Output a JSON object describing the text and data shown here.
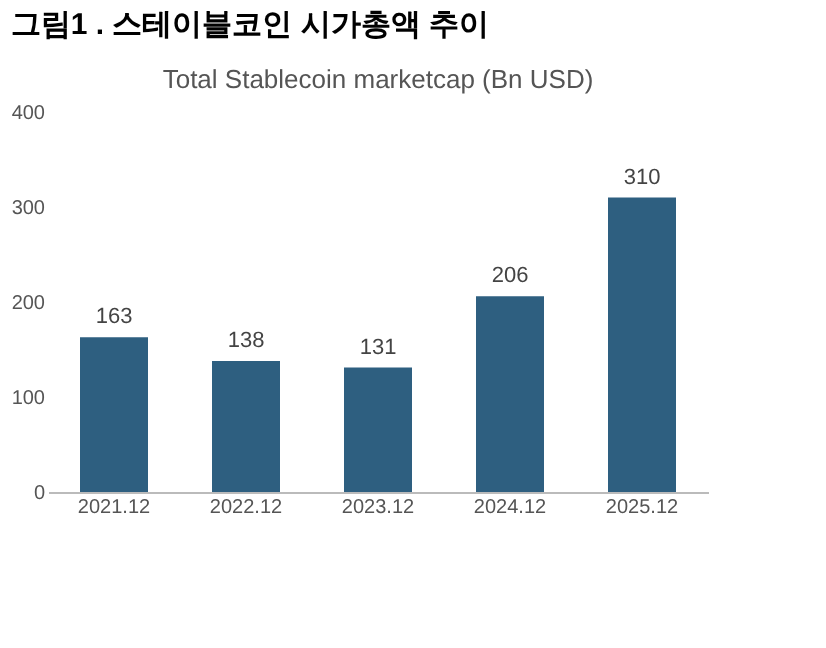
{
  "chart_data": {
    "type": "bar",
    "title": "그림1 . 스테이블코인 시가총액 추이",
    "subtitle": "Total Stablecoin marketcap (Bn USD)",
    "categories": [
      "2021.12",
      "2022.12",
      "2023.12",
      "2024.12",
      "2025.12"
    ],
    "values": [
      163,
      138,
      131,
      206,
      310
    ],
    "color": "#2e5f80",
    "ylim": [
      0,
      400
    ],
    "yticks": [
      0,
      100,
      200,
      300,
      400
    ],
    "grid": false,
    "data_labels": true
  }
}
